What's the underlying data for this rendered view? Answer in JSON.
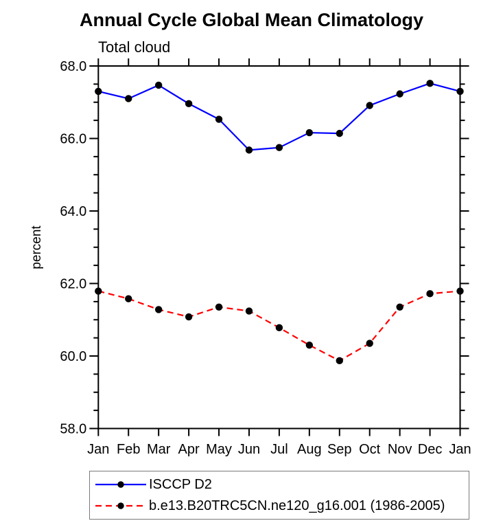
{
  "chart": {
    "title": "Annual Cycle Global Mean Climatology",
    "subtitle": "Total cloud",
    "ylabel": "percent"
  },
  "colors": {
    "obs_line": "#0000ff",
    "model_line": "#ff0000",
    "marker": "#000000",
    "axis": "#000000",
    "legend_border": "#7a7a7a"
  },
  "chart_data": {
    "type": "line",
    "title": "Annual Cycle Global Mean Climatology",
    "subtitle": "Total cloud",
    "xlabel": "",
    "ylabel": "percent",
    "categories": [
      "Jan",
      "Feb",
      "Mar",
      "Apr",
      "May",
      "Jun",
      "Jul",
      "Aug",
      "Sep",
      "Oct",
      "Nov",
      "Dec",
      "Jan"
    ],
    "series": [
      {
        "name": "ISCCP D2",
        "color": "#0000ff",
        "line_style": "solid",
        "marker": "filled-circle",
        "marker_color": "#000000",
        "values": [
          67.3,
          67.1,
          67.47,
          66.96,
          66.53,
          65.68,
          65.75,
          66.16,
          66.14,
          66.91,
          67.23,
          67.52,
          67.3
        ]
      },
      {
        "name": "b.e13.B20TRC5CN.ne120_g16.001 (1986-2005)",
        "color": "#ff0000",
        "line_style": "dashed",
        "marker": "filled-circle",
        "marker_color": "#000000",
        "values": [
          61.79,
          61.58,
          61.28,
          61.08,
          61.35,
          61.24,
          60.78,
          60.3,
          59.87,
          60.35,
          61.35,
          61.72,
          61.79
        ]
      }
    ],
    "ylim": [
      58.0,
      68.0
    ],
    "ytick_step": 2.0,
    "yminor_step": 0.5,
    "ytick_labels": [
      "58.0",
      "60.0",
      "62.0",
      "64.0",
      "66.0",
      "68.0"
    ],
    "grid": false,
    "legend_position": "bottom-left"
  }
}
